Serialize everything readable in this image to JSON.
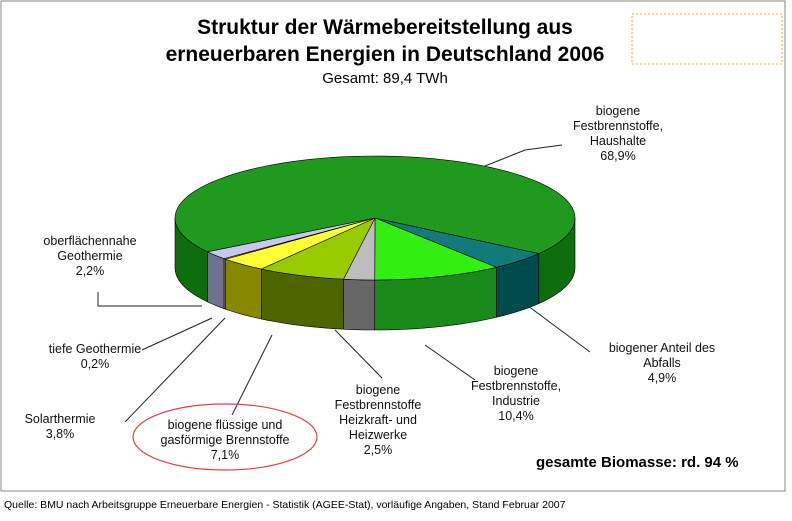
{
  "chart_data": {
    "type": "pie3d",
    "title": "Struktur der Wärmebereitstellung aus\nerneuerbaren Energien in Deutschland 2006",
    "subtitle": "Gesamt: 89,4 TWh",
    "categories": [
      "biogene\nFestbrennstoffe,\nHaushalte",
      "biogener Anteil des\nAbfalls",
      "biogene\nFestbrennstoffe,\nIndustrie",
      "biogene\nFestbrennstoffe\nHeizkraft- und\nHeizwerke",
      "biogene flüssige und\ngasförmige Brennstoffe",
      "Solarthermie",
      "tiefe Geothermie",
      "oberflächennahe\nGeothermie"
    ],
    "values": [
      68.9,
      4.9,
      10.4,
      2.5,
      7.1,
      3.8,
      0.2,
      2.2
    ],
    "value_labels": [
      "68,9%",
      "4,9%",
      "10,4%",
      "2,5%",
      "7,1%",
      "3,8%",
      "0,2%",
      "2,2%"
    ],
    "colors": [
      "#1f9a1f",
      "#117a7a",
      "#33ee11",
      "#bdbdbd",
      "#99cc00",
      "#ffff33",
      "#dddddd",
      "#c8c8ee"
    ],
    "side_colors": [
      "#0e6e0e",
      "#004c4c",
      "#1a8a1a",
      "#666666",
      "#4d6600",
      "#888800",
      "#888888",
      "#707090"
    ],
    "annotation": "gesamte Biomasse: rd. 94 %",
    "source": "Quelle: BMU nach Arbeitsgruppe Erneuerbare Energien - Statistik (AGEE-Stat), vorläufige Angaben, Stand Februar 2007"
  }
}
